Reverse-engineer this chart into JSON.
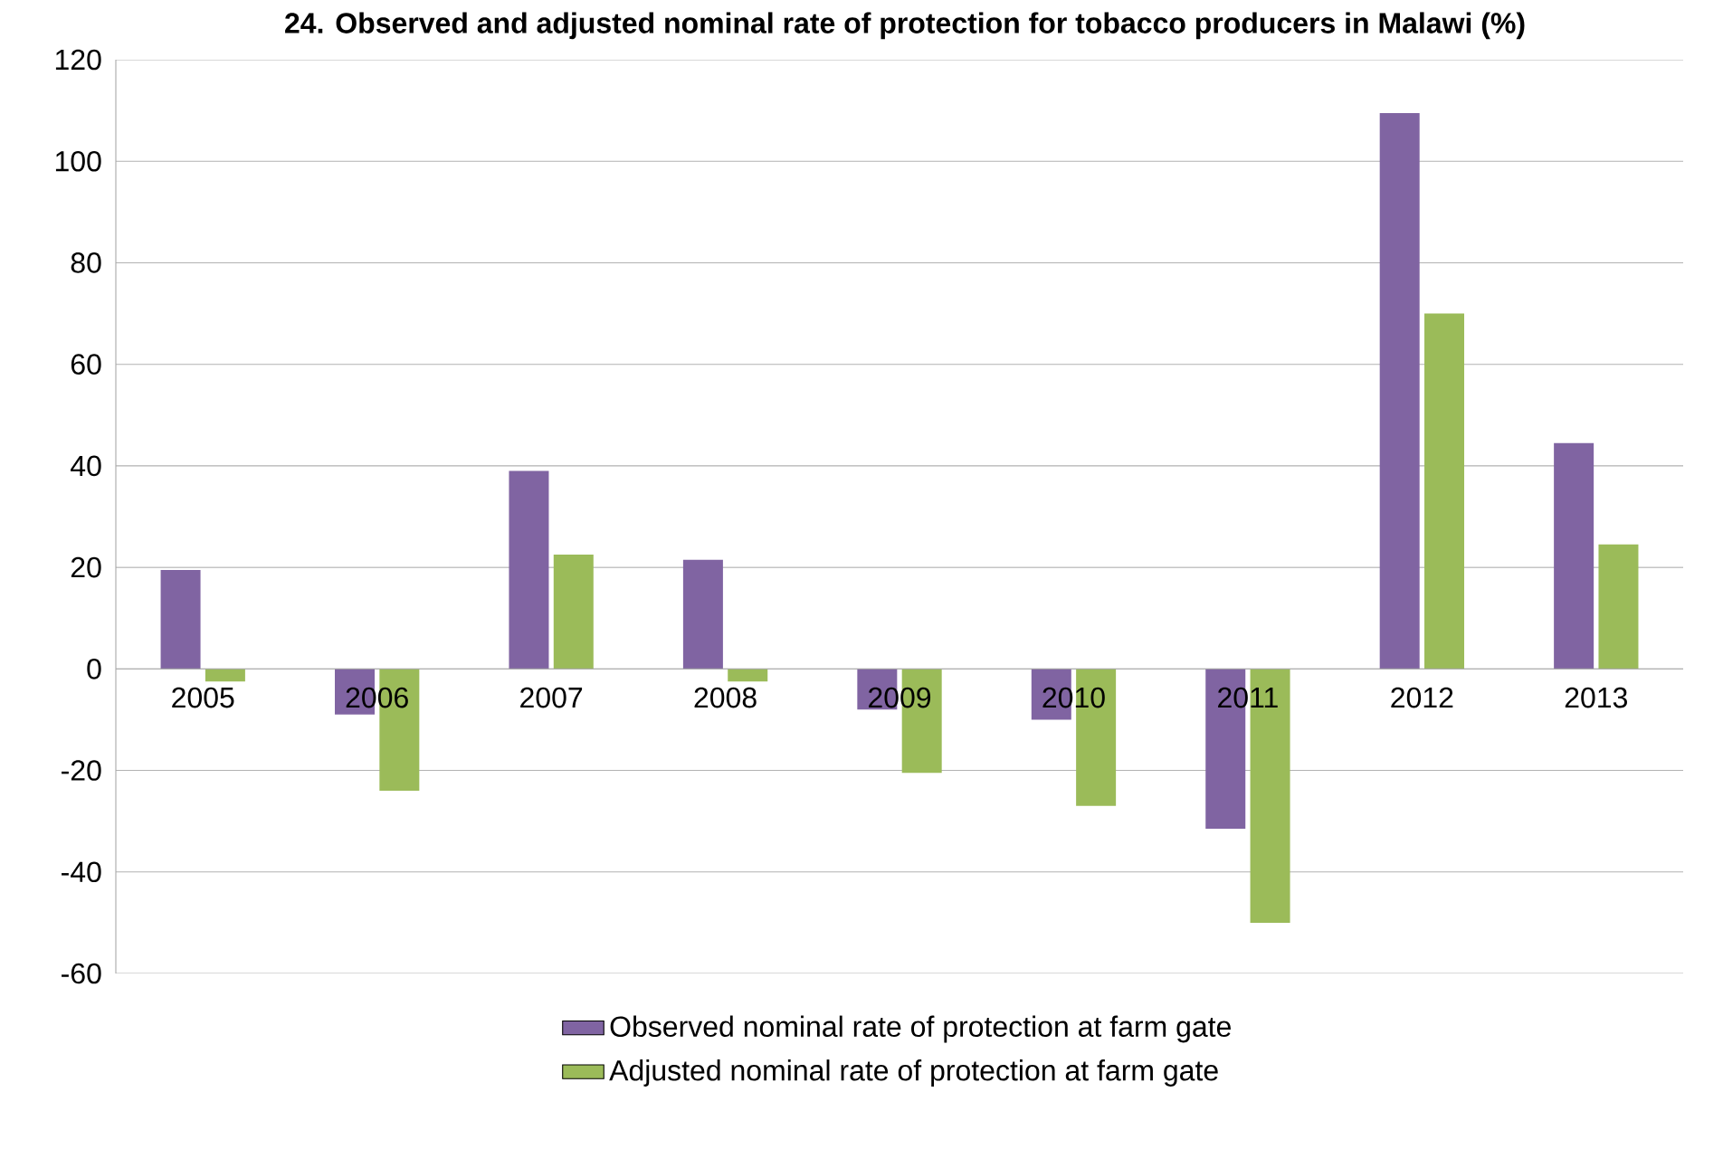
{
  "chart_data": {
    "type": "bar",
    "title": "24. Observed and adjusted nominal rate of protection for tobacco producers in Malawi (%)",
    "categories": [
      "2005",
      "2006",
      "2007",
      "2008",
      "2009",
      "2010",
      "2011",
      "2012",
      "2013"
    ],
    "series": [
      {
        "name": "Observed nominal rate of protection at farm gate",
        "color": "#8064a2",
        "values": [
          19.5,
          -9,
          39,
          21.5,
          -8,
          -10,
          -31.5,
          109.5,
          44.5
        ]
      },
      {
        "name": "Adjusted nominal rate of protection at farm gate",
        "color": "#9bbb59",
        "values": [
          -2.5,
          -24,
          22.5,
          -2.5,
          -20.5,
          -27,
          -50,
          70,
          24.5
        ]
      }
    ],
    "ylim": [
      -60,
      120
    ],
    "yticks": [
      -60,
      -40,
      -20,
      0,
      20,
      40,
      60,
      80,
      100,
      120
    ],
    "grid": "y",
    "legend": "bottom"
  }
}
